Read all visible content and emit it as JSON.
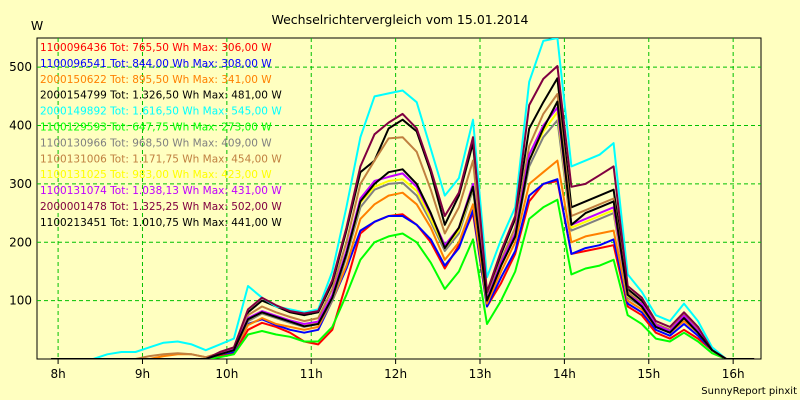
{
  "chart_data": {
    "type": "line",
    "title": "Wechselrichtervergleich vom 15.01.2014",
    "ylabel": "W",
    "footer": "SunnyReport pinxit",
    "xlim": [
      7.75,
      16.33
    ],
    "ylim": [
      0,
      550
    ],
    "x_ticks": [
      {
        "value": 8,
        "label": "8h"
      },
      {
        "value": 9,
        "label": "9h"
      },
      {
        "value": 10,
        "label": "10h"
      },
      {
        "value": 11,
        "label": "11h"
      },
      {
        "value": 12,
        "label": "12h"
      },
      {
        "value": 13,
        "label": "13h"
      },
      {
        "value": 14,
        "label": "14h"
      },
      {
        "value": 15,
        "label": "15h"
      },
      {
        "value": 16,
        "label": "16h"
      }
    ],
    "y_ticks": [
      {
        "value": 100,
        "label": "100"
      },
      {
        "value": 200,
        "label": "200"
      },
      {
        "value": 300,
        "label": "300"
      },
      {
        "value": 400,
        "label": "400"
      },
      {
        "value": 500,
        "label": "500"
      }
    ],
    "grid": true,
    "legend_position": "top-left",
    "x": [
      7.917,
      8.083,
      8.25,
      8.417,
      8.583,
      8.75,
      8.917,
      9.083,
      9.25,
      9.417,
      9.583,
      9.75,
      9.917,
      10.083,
      10.25,
      10.417,
      10.583,
      10.75,
      10.917,
      11.083,
      11.25,
      11.417,
      11.583,
      11.75,
      11.917,
      12.083,
      12.25,
      12.417,
      12.583,
      12.75,
      12.917,
      13.083,
      13.25,
      13.417,
      13.583,
      13.75,
      13.917,
      14.083,
      14.25,
      14.417,
      14.583,
      14.75,
      14.917,
      15.083,
      15.25,
      15.417,
      15.583,
      15.75,
      15.917,
      16.083,
      16.25
    ],
    "series": [
      {
        "name": "1100096436",
        "legend": "1100096436 Tot: 765,50 Wh Max: 306,00 W",
        "color": "#ff0000",
        "values": [
          0,
          0,
          0,
          0,
          0,
          0,
          0,
          0,
          0,
          0,
          0,
          0,
          5,
          10,
          50,
          62,
          55,
          45,
          30,
          25,
          50,
          130,
          215,
          235,
          245,
          248,
          230,
          200,
          155,
          195,
          250,
          90,
          130,
          180,
          270,
          300,
          305,
          180,
          185,
          190,
          195,
          90,
          75,
          45,
          35,
          50,
          35,
          15,
          0,
          0,
          0
        ]
      },
      {
        "name": "1100096541",
        "legend": "1100096541 Tot: 844,00 Wh Max: 308,00 W",
        "color": "#0000ff",
        "values": [
          0,
          0,
          0,
          0,
          0,
          0,
          0,
          0,
          0,
          0,
          0,
          0,
          8,
          12,
          60,
          68,
          58,
          50,
          45,
          50,
          100,
          155,
          220,
          235,
          245,
          245,
          230,
          205,
          160,
          190,
          255,
          90,
          140,
          185,
          280,
          300,
          308,
          180,
          190,
          195,
          205,
          95,
          80,
          50,
          40,
          60,
          40,
          15,
          0,
          0,
          0
        ]
      },
      {
        "name": "2000150622",
        "legend": "2000150622 Tot: 895,50 Wh Max: 341,00 W",
        "color": "#ff8000",
        "values": [
          0,
          0,
          0,
          0,
          0,
          0,
          0,
          0,
          5,
          8,
          8,
          3,
          10,
          15,
          58,
          70,
          60,
          55,
          50,
          55,
          100,
          160,
          240,
          265,
          280,
          285,
          265,
          225,
          170,
          200,
          265,
          95,
          150,
          200,
          300,
          320,
          340,
          200,
          210,
          215,
          220,
          100,
          85,
          55,
          45,
          65,
          45,
          15,
          0,
          0,
          0
        ]
      },
      {
        "name": "2000154799",
        "legend": "2000154799 Tot: 1.326,50 Wh Max: 481,00 W",
        "color": "#000000",
        "values": [
          0,
          0,
          0,
          0,
          0,
          0,
          0,
          0,
          0,
          0,
          0,
          0,
          10,
          18,
          80,
          100,
          90,
          80,
          75,
          80,
          130,
          220,
          320,
          340,
          395,
          410,
          390,
          320,
          230,
          280,
          370,
          110,
          180,
          240,
          395,
          440,
          481,
          260,
          270,
          280,
          290,
          120,
          100,
          60,
          50,
          75,
          50,
          15,
          0,
          0,
          0
        ]
      },
      {
        "name": "2000149892",
        "legend": "2000149892 Tot: 1.616,50 Wh Max: 545,00 W",
        "color": "#00ffff",
        "values": [
          0,
          0,
          0,
          0,
          8,
          12,
          12,
          20,
          28,
          30,
          25,
          15,
          25,
          35,
          125,
          105,
          90,
          85,
          80,
          85,
          150,
          260,
          380,
          450,
          455,
          460,
          440,
          360,
          280,
          310,
          410,
          140,
          205,
          260,
          475,
          545,
          550,
          330,
          340,
          350,
          370,
          145,
          115,
          75,
          65,
          95,
          65,
          20,
          0,
          0,
          0
        ]
      },
      {
        "name": "1100129593",
        "legend": "1100129593 Tot: 647,75 Wh Max: 273,00 W",
        "color": "#00ff00",
        "values": [
          0,
          0,
          0,
          0,
          0,
          0,
          0,
          0,
          0,
          0,
          0,
          0,
          3,
          8,
          42,
          48,
          42,
          38,
          30,
          30,
          55,
          110,
          170,
          200,
          210,
          215,
          200,
          165,
          120,
          150,
          205,
          60,
          100,
          150,
          240,
          260,
          273,
          145,
          155,
          160,
          170,
          75,
          60,
          35,
          30,
          45,
          30,
          10,
          0,
          0,
          0
        ]
      },
      {
        "name": "1100130966",
        "legend": "1100130966 Tot: 968,50 Wh Max: 409,00 W",
        "color": "#808080",
        "values": [
          0,
          0,
          0,
          0,
          0,
          0,
          0,
          0,
          0,
          0,
          0,
          0,
          8,
          15,
          65,
          78,
          70,
          62,
          55,
          60,
          100,
          175,
          260,
          290,
          300,
          302,
          280,
          235,
          185,
          215,
          290,
          100,
          160,
          210,
          330,
          380,
          409,
          220,
          230,
          240,
          250,
          105,
          90,
          55,
          45,
          70,
          45,
          15,
          0,
          0,
          0
        ]
      },
      {
        "name": "1100131006",
        "legend": "1100131006 Tot: 1.171,75 Wh Max: 454,00 W",
        "color": "#c08040",
        "values": [
          0,
          0,
          0,
          0,
          0,
          0,
          0,
          5,
          8,
          10,
          8,
          3,
          10,
          18,
          75,
          90,
          80,
          72,
          65,
          70,
          120,
          200,
          300,
          340,
          378,
          380,
          355,
          290,
          215,
          260,
          340,
          105,
          170,
          225,
          365,
          420,
          454,
          245,
          255,
          265,
          275,
          115,
          95,
          60,
          50,
          75,
          50,
          15,
          0,
          0,
          0
        ]
      },
      {
        "name": "1100131025",
        "legend": "1100131025 Tot: 983,00 Wh Max: 423,00 W",
        "color": "#ffff00",
        "values": [
          0,
          0,
          0,
          0,
          0,
          0,
          0,
          0,
          0,
          0,
          0,
          0,
          8,
          15,
          68,
          80,
          72,
          65,
          58,
          62,
          105,
          180,
          268,
          295,
          305,
          308,
          288,
          240,
          190,
          220,
          295,
          100,
          162,
          212,
          340,
          390,
          423,
          225,
          235,
          245,
          255,
          108,
          92,
          56,
          46,
          72,
          46,
          15,
          0,
          0,
          0
        ]
      },
      {
        "name": "1100131074",
        "legend": "1100131074 Tot: 1.038,13 Wh Max: 431,00 W",
        "color": "#c000ff",
        "values": [
          0,
          0,
          0,
          0,
          0,
          0,
          0,
          0,
          0,
          0,
          0,
          0,
          8,
          16,
          70,
          82,
          74,
          66,
          60,
          64,
          110,
          185,
          275,
          305,
          312,
          318,
          295,
          248,
          195,
          225,
          300,
          102,
          165,
          215,
          350,
          400,
          431,
          230,
          240,
          250,
          260,
          110,
          94,
          58,
          48,
          74,
          48,
          15,
          0,
          0,
          0
        ]
      },
      {
        "name": "2000001478",
        "legend": "2000001478 Tot: 1.325,25 Wh Max: 502,00 W",
        "color": "#800040",
        "values": [
          0,
          0,
          0,
          0,
          0,
          0,
          0,
          0,
          0,
          0,
          0,
          0,
          12,
          20,
          85,
          105,
          92,
          82,
          78,
          82,
          135,
          225,
          330,
          385,
          405,
          420,
          395,
          325,
          245,
          285,
          380,
          115,
          185,
          245,
          435,
          480,
          502,
          295,
          300,
          315,
          330,
          125,
          105,
          65,
          55,
          80,
          55,
          15,
          0,
          0,
          0
        ]
      },
      {
        "name": "1100213451",
        "legend": "1100213451 Tot: 1.010,75 Wh Max: 441,00 W",
        "color": "#000000",
        "values": [
          0,
          0,
          0,
          0,
          0,
          0,
          0,
          0,
          0,
          0,
          0,
          0,
          8,
          15,
          68,
          80,
          72,
          64,
          56,
          60,
          105,
          180,
          270,
          300,
          320,
          325,
          300,
          250,
          190,
          225,
          295,
          100,
          160,
          210,
          340,
          395,
          441,
          230,
          250,
          260,
          270,
          110,
          90,
          55,
          45,
          70,
          45,
          15,
          0,
          0,
          0
        ]
      }
    ]
  }
}
